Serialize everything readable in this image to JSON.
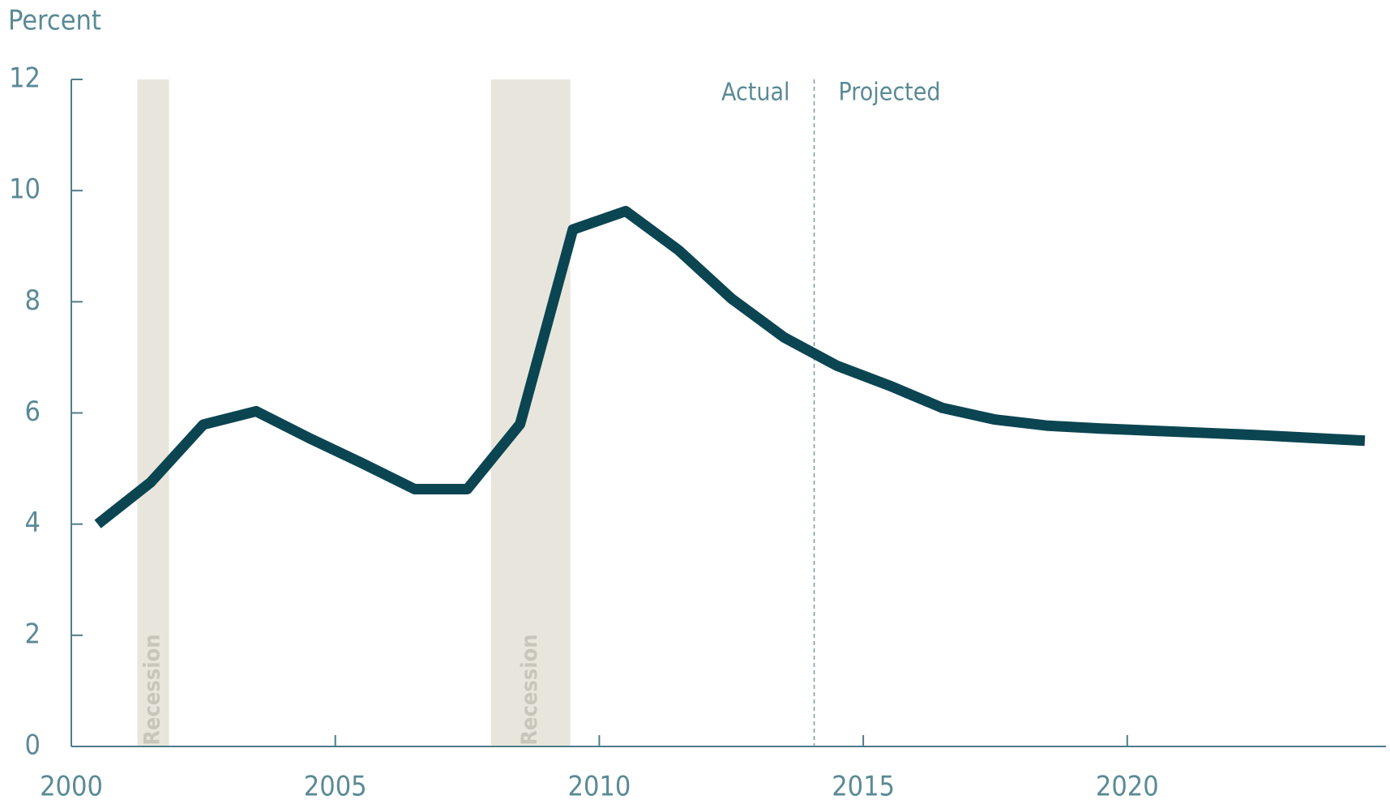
{
  "chart_data": {
    "type": "line",
    "y_label": "Percent",
    "x": [
      2000.5,
      2001.5,
      2002.5,
      2003.5,
      2004.5,
      2005.5,
      2006.5,
      2007.5,
      2008.5,
      2009.5,
      2010.5,
      2011.5,
      2012.5,
      2013.5,
      2014.5,
      2015.5,
      2016.5,
      2017.5,
      2018.5,
      2019.5,
      2020.5,
      2021.5,
      2022.5,
      2023.5,
      2024.5
    ],
    "series": [
      {
        "color": "#0b4552",
        "values": [
          4.0,
          4.75,
          5.79,
          6.03,
          5.55,
          5.1,
          4.63,
          4.63,
          5.8,
          9.3,
          9.63,
          8.93,
          8.06,
          7.36,
          6.85,
          6.49,
          6.09,
          5.88,
          5.77,
          5.72,
          5.68,
          5.64,
          5.6,
          5.55,
          5.5
        ]
      }
    ],
    "xlim": [
      2000,
      2024.9
    ],
    "xticks": [
      2000,
      2005,
      2010,
      2015,
      2020
    ],
    "ylim": [
      0,
      12
    ],
    "yticks": [
      0,
      2,
      4,
      6,
      8,
      10,
      12
    ],
    "recessions": [
      {
        "start": 2001.25,
        "end": 2001.85,
        "label": "Recession"
      },
      {
        "start": 2007.95,
        "end": 2009.45,
        "label": "Recession"
      }
    ],
    "divider": {
      "x": 2014.07,
      "left_label": "Actual",
      "right_label": "Projected"
    }
  }
}
